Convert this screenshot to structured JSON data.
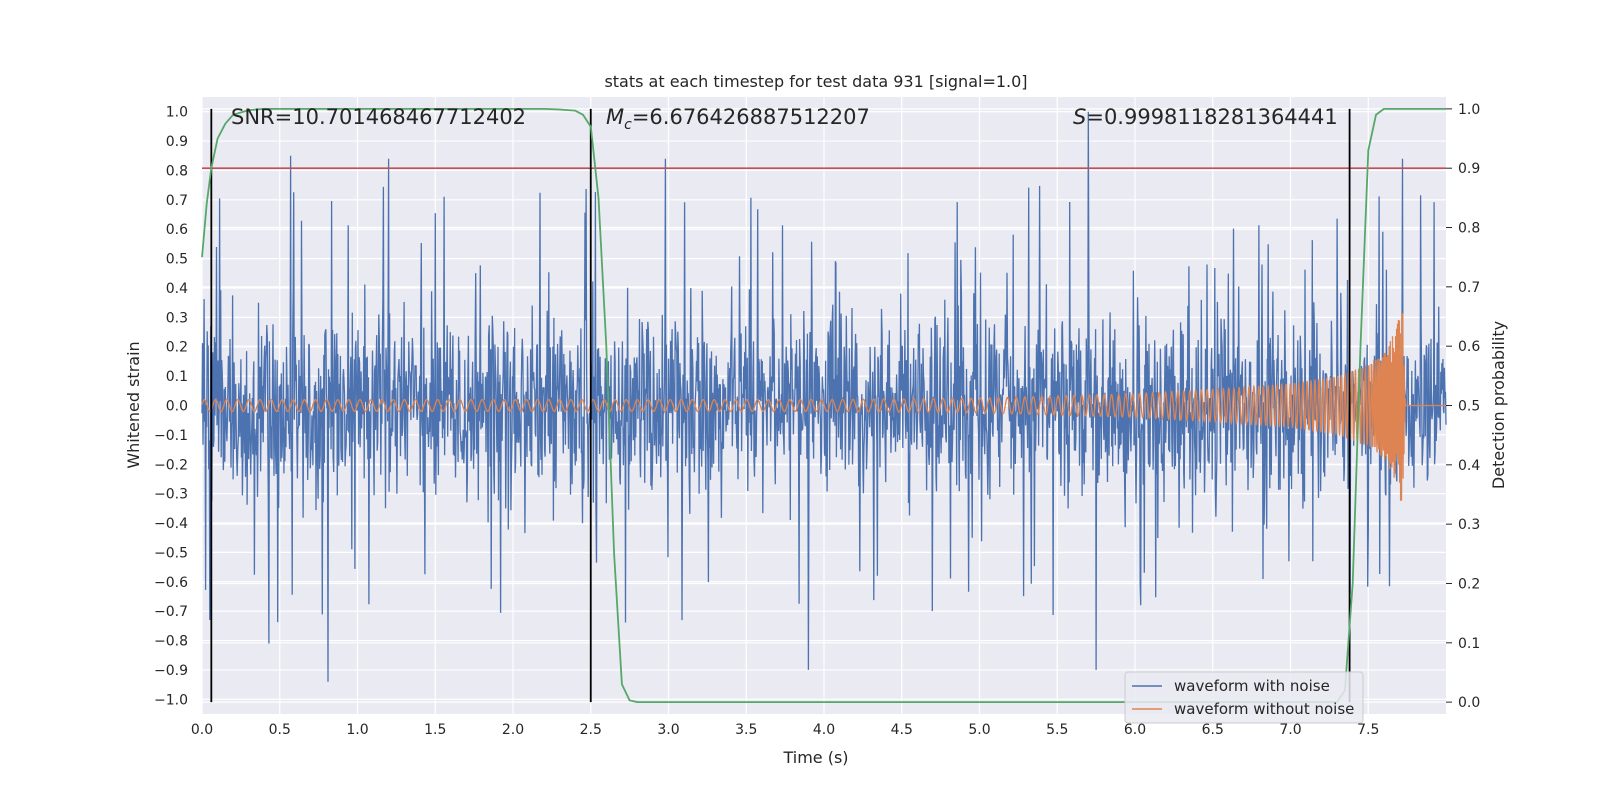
{
  "chart_data": {
    "type": "line",
    "title": "stats at each timestep for test data 931 [signal=1.0]",
    "xlabel": "Time (s)",
    "ylabel": "Whitened strain",
    "ylabel_right": "Detection probability",
    "xlim": [
      0.0,
      8.0
    ],
    "ylim": [
      -1.05,
      1.05
    ],
    "ylim_right": [
      -0.02,
      1.02
    ],
    "xticks": [
      "0.0",
      "0.5",
      "1.0",
      "1.5",
      "2.0",
      "2.5",
      "3.0",
      "3.5",
      "4.0",
      "4.5",
      "5.0",
      "5.5",
      "6.0",
      "6.5",
      "7.0",
      "7.5"
    ],
    "yticks": [
      "1.0",
      "0.9",
      "0.8",
      "0.7",
      "0.6",
      "0.5",
      "0.4",
      "0.3",
      "0.2",
      "0.1",
      "0.0",
      "−0.1",
      "−0.2",
      "−0.3",
      "−0.4",
      "−0.5",
      "−0.6",
      "−0.7",
      "−0.8",
      "−0.9",
      "−1.0"
    ],
    "yticks_right": [
      "1.0",
      "0.9",
      "0.8",
      "0.7",
      "0.6",
      "0.5",
      "0.4",
      "0.3",
      "0.2",
      "0.1",
      "0.0"
    ],
    "grid": true,
    "legend_position": "bottom-right",
    "annotations": {
      "snr": "SNR=10.701468467712402",
      "mc_symbol": "M",
      "mc_sub": "c",
      "mc_value": "=6.676426887512207",
      "s_symbol": "S",
      "s_value": "=0.9998118281364441"
    },
    "threshold": {
      "axis": "right",
      "value": 0.9,
      "color": "#c44e52"
    },
    "vertical_markers": [
      0.06,
      2.5,
      7.38
    ],
    "series": [
      {
        "name": "waveform with noise",
        "color": "#4c72b0",
        "axis": "left",
        "description_points": {
          "x_range": [
            0.0,
            8.0
          ],
          "envelope_typical": 0.32,
          "peaks": [
            [
              0.57,
              0.85
            ],
            [
              0.81,
              -0.94
            ],
            [
              1.2,
              0.84
            ],
            [
              2.98,
              0.84
            ],
            [
              3.9,
              -0.9
            ],
            [
              5.7,
              1.0
            ],
            [
              5.75,
              -0.9
            ],
            [
              7.72,
              0.84
            ],
            [
              0.05,
              -0.73
            ],
            [
              0.43,
              -0.81
            ]
          ]
        }
      },
      {
        "name": "waveform without noise",
        "color": "#dd8452",
        "axis": "left",
        "x": [
          0.0,
          1.0,
          2.0,
          3.0,
          4.0,
          5.0,
          6.0,
          6.5,
          7.0,
          7.3,
          7.5,
          7.6,
          7.68,
          7.72,
          7.74,
          8.0
        ],
        "amplitude": [
          0.02,
          0.02,
          0.02,
          0.02,
          0.02,
          0.025,
          0.04,
          0.055,
          0.075,
          0.1,
          0.14,
          0.18,
          0.26,
          0.36,
          0.0,
          0.0
        ]
      },
      {
        "name": "detection probability",
        "color": "#55a868",
        "axis": "right",
        "x": [
          0.0,
          0.03,
          0.06,
          0.1,
          0.15,
          0.2,
          0.3,
          0.4,
          0.6,
          1.0,
          1.5,
          2.0,
          2.2,
          2.3,
          2.4,
          2.45,
          2.5,
          2.55,
          2.6,
          2.65,
          2.7,
          2.75,
          2.8,
          3.0,
          4.0,
          5.0,
          6.0,
          7.0,
          7.3,
          7.35,
          7.4,
          7.45,
          7.5,
          7.55,
          7.6,
          7.7,
          8.0
        ],
        "y": [
          0.75,
          0.84,
          0.9,
          0.95,
          0.975,
          0.99,
          0.998,
          1.0,
          1.0,
          1.0,
          1.0,
          1.0,
          1.0,
          0.999,
          0.997,
          0.99,
          0.97,
          0.85,
          0.6,
          0.25,
          0.03,
          0.003,
          0.0,
          0.0,
          0.0,
          0.0,
          0.0,
          0.0,
          0.0,
          0.02,
          0.2,
          0.6,
          0.93,
          0.99,
          1.0,
          1.0,
          1.0
        ]
      }
    ]
  }
}
